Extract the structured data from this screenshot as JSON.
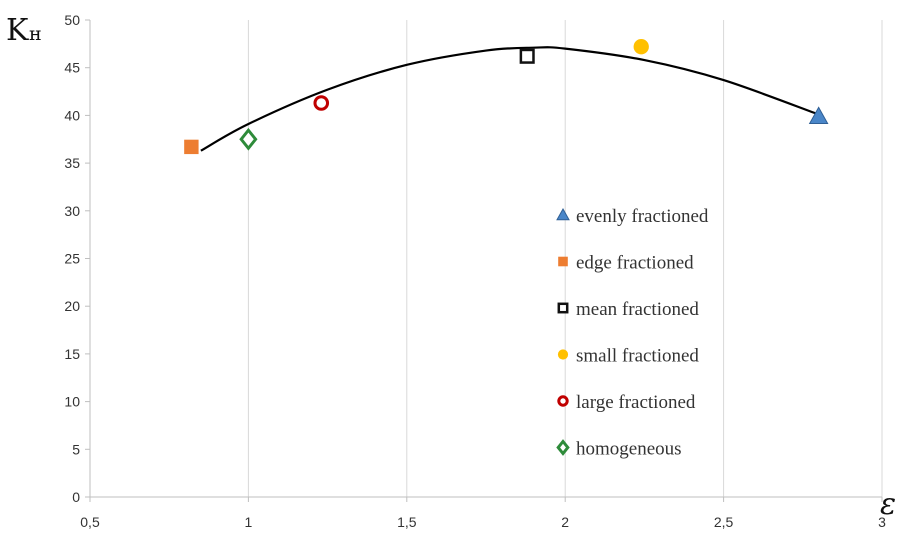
{
  "chart_data": {
    "type": "scatter",
    "ylabel": {
      "main": "K",
      "sub": "н"
    },
    "xlabel": "ε",
    "xlim": [
      0.5,
      3
    ],
    "ylim": [
      0,
      50
    ],
    "xticks": [
      0.5,
      1,
      1.5,
      2,
      2.5,
      3
    ],
    "xtick_labels": [
      "0,5",
      "1",
      "1,5",
      "2",
      "2,5",
      "3"
    ],
    "yticks": [
      0,
      5,
      10,
      15,
      20,
      25,
      30,
      35,
      40,
      45,
      50
    ],
    "ytick_labels": [
      "0",
      "5",
      "10",
      "15",
      "20",
      "25",
      "30",
      "35",
      "40",
      "45",
      "50"
    ],
    "grid": "vertical",
    "legend_position": "bottom-right",
    "series": [
      {
        "name": "evenly fractioned",
        "marker": "triangle",
        "color": "#4a86c8",
        "x": 2.8,
        "y": 39.9
      },
      {
        "name": "edge fractioned",
        "marker": "square",
        "color": "#ed7d31",
        "x": 0.82,
        "y": 36.7
      },
      {
        "name": "mean fractioned",
        "marker": "square-open",
        "color": "#111111",
        "x": 1.88,
        "y": 46.2
      },
      {
        "name": "small fractioned",
        "marker": "circle",
        "color": "#ffc000",
        "x": 2.24,
        "y": 47.2
      },
      {
        "name": "large fractioned",
        "marker": "circle-open",
        "color": "#c00000",
        "x": 1.23,
        "y": 41.3
      },
      {
        "name": "homogeneous",
        "marker": "diamond-open",
        "color": "#2e8b3a",
        "x": 1.0,
        "y": 37.5
      }
    ],
    "trendline": {
      "type": "polynomial",
      "color": "#000000",
      "x": [
        0.85,
        1.0,
        1.25,
        1.5,
        1.75,
        1.9,
        2.0,
        2.25,
        2.5,
        2.8
      ],
      "y": [
        36.3,
        39.1,
        42.7,
        45.3,
        46.8,
        47.1,
        47.0,
        45.8,
        43.7,
        40.1
      ]
    }
  }
}
